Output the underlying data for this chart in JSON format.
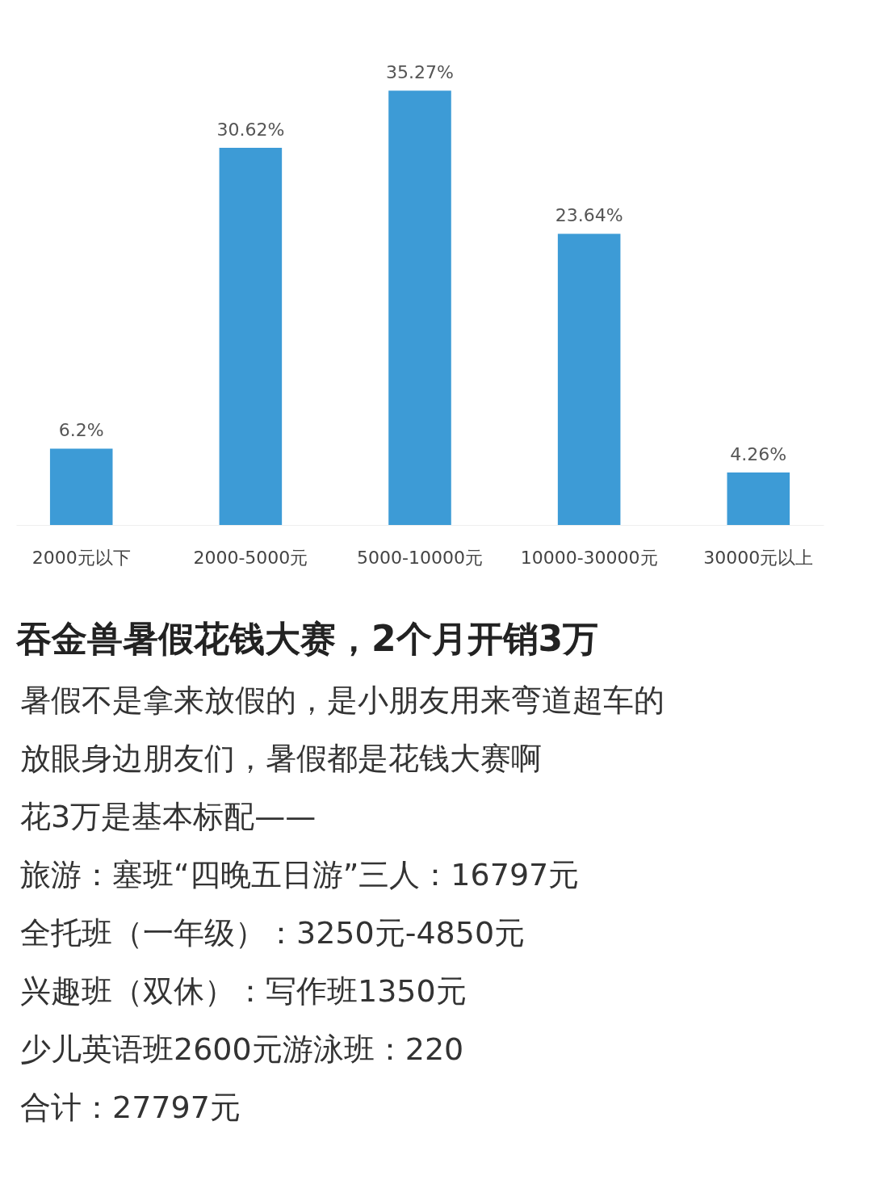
{
  "chart_data": {
    "type": "bar",
    "title": "吞金兽暑假花钱大赛，2个月开销3万",
    "categories": [
      "2000元以下",
      "2000-5000元",
      "5000-10000元",
      "10000-30000元",
      "30000元以上"
    ],
    "values": [
      6.2,
      30.62,
      35.27,
      23.64,
      4.26
    ],
    "value_labels": [
      "6.2%",
      "30.62%",
      "35.27%",
      "23.64%",
      "4.26%"
    ],
    "color": "#3d9bd6",
    "grid": false,
    "annotations": [
      "暑假不是拿来放假的，是小朋友用来弯道超车的",
      "放眼身边朋友们，暑假都是花钱大赛啊",
      "花3万是基本标配——",
      "旅游：塞班“四晚五日游”三人：16797元",
      "全托班（一年级）：3250元-4850元",
      "兴趣班（双休）：写作班1350元",
      "少儿英语班2600元游泳班：220",
      "合计：27797元"
    ]
  }
}
